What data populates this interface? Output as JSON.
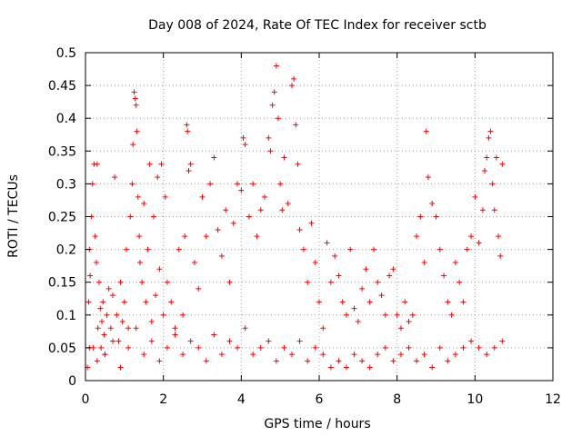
{
  "chart_data": {
    "type": "scatter",
    "title": "Day 008 of 2024, Rate Of TEC Index for receiver sctb",
    "xlabel": "GPS time / hours",
    "ylabel": "ROTI / TECUs",
    "xlim": [
      0,
      12
    ],
    "ylim": [
      0,
      0.5
    ],
    "xticks": [
      0,
      2,
      4,
      6,
      8,
      10,
      12
    ],
    "xtick_labels": [
      "0",
      "2",
      "4",
      "6",
      "8",
      "10",
      "12"
    ],
    "yticks": [
      0,
      0.05,
      0.1,
      0.15,
      0.2,
      0.25,
      0.3,
      0.35,
      0.4,
      0.45,
      0.5
    ],
    "ytick_labels": [
      "0",
      "0.05",
      "0.1",
      "0.15",
      "0.2",
      "0.25",
      "0.3",
      "0.35",
      "0.4",
      "0.45",
      "0.5"
    ],
    "grid": true,
    "marker": "+",
    "color": "#ff0000",
    "series": [
      {
        "name": "ROTI",
        "x": [
          0.05,
          0.08,
          0.1,
          0.12,
          0.15,
          0.18,
          0.2,
          0.22,
          0.25,
          0.28,
          0.3,
          0.32,
          0.35,
          0.38,
          0.4,
          0.42,
          0.45,
          0.48,
          0.5,
          0.55,
          0.6,
          0.65,
          0.7,
          0.75,
          0.8,
          0.85,
          0.9,
          0.95,
          1.0,
          1.05,
          1.1,
          1.15,
          1.2,
          1.22,
          1.25,
          1.28,
          1.3,
          1.32,
          1.35,
          1.38,
          1.4,
          1.45,
          1.5,
          1.55,
          1.6,
          1.65,
          1.7,
          1.75,
          1.8,
          1.85,
          1.9,
          1.95,
          2.0,
          2.05,
          2.1,
          2.2,
          2.3,
          2.4,
          2.5,
          2.55,
          2.6,
          2.62,
          2.65,
          2.7,
          2.8,
          2.9,
          3.0,
          3.1,
          3.2,
          3.3,
          3.4,
          3.5,
          3.6,
          3.7,
          3.8,
          3.9,
          4.0,
          4.05,
          4.1,
          4.2,
          4.3,
          4.4,
          4.5,
          4.6,
          4.7,
          4.75,
          4.8,
          4.85,
          4.9,
          4.95,
          5.0,
          5.05,
          5.1,
          5.2,
          5.3,
          5.35,
          5.4,
          5.45,
          5.5,
          5.6,
          5.7,
          5.8,
          5.9,
          6.0,
          6.1,
          6.2,
          6.3,
          6.4,
          6.5,
          6.6,
          6.7,
          6.8,
          6.9,
          7.0,
          7.1,
          7.2,
          7.3,
          7.4,
          7.5,
          7.6,
          7.7,
          7.8,
          7.9,
          8.0,
          8.1,
          8.2,
          8.3,
          8.4,
          8.5,
          8.6,
          8.7,
          8.75,
          8.8,
          8.9,
          9.0,
          9.1,
          9.2,
          9.3,
          9.4,
          9.5,
          9.6,
          9.7,
          9.8,
          9.9,
          10.0,
          10.1,
          10.2,
          10.25,
          10.3,
          10.35,
          10.4,
          10.45,
          10.5,
          10.55,
          10.6,
          10.65,
          10.7,
          0.1,
          0.3,
          0.5,
          0.7,
          0.9,
          1.1,
          1.3,
          1.5,
          1.7,
          1.9,
          2.1,
          2.3,
          2.5,
          2.7,
          2.9,
          3.1,
          3.3,
          3.5,
          3.7,
          3.9,
          4.1,
          4.3,
          4.5,
          4.7,
          4.9,
          5.1,
          5.3,
          5.5,
          5.7,
          5.9,
          6.1,
          6.3,
          6.5,
          6.7,
          6.9,
          7.1,
          7.3,
          7.5,
          7.7,
          7.9,
          8.1,
          8.3,
          8.5,
          8.7,
          8.9,
          9.1,
          9.3,
          9.5,
          9.7,
          9.9,
          10.1,
          10.3,
          10.5,
          10.7
        ],
        "y": [
          0.02,
          0.12,
          0.2,
          0.16,
          0.25,
          0.3,
          0.05,
          0.33,
          0.22,
          0.18,
          0.33,
          0.08,
          0.15,
          0.11,
          0.05,
          0.09,
          0.12,
          0.07,
          0.04,
          0.1,
          0.14,
          0.08,
          0.13,
          0.31,
          0.1,
          0.06,
          0.15,
          0.09,
          0.12,
          0.2,
          0.08,
          0.25,
          0.3,
          0.36,
          0.44,
          0.43,
          0.42,
          0.38,
          0.28,
          0.22,
          0.18,
          0.15,
          0.27,
          0.12,
          0.2,
          0.33,
          0.09,
          0.25,
          0.13,
          0.31,
          0.17,
          0.33,
          0.1,
          0.28,
          0.15,
          0.12,
          0.08,
          0.2,
          0.1,
          0.22,
          0.39,
          0.38,
          0.32,
          0.33,
          0.18,
          0.14,
          0.28,
          0.22,
          0.3,
          0.34,
          0.23,
          0.19,
          0.26,
          0.15,
          0.24,
          0.3,
          0.29,
          0.37,
          0.36,
          0.25,
          0.3,
          0.22,
          0.26,
          0.28,
          0.37,
          0.35,
          0.42,
          0.44,
          0.48,
          0.4,
          0.3,
          0.26,
          0.34,
          0.27,
          0.45,
          0.46,
          0.39,
          0.33,
          0.23,
          0.2,
          0.15,
          0.24,
          0.18,
          0.12,
          0.08,
          0.21,
          0.15,
          0.19,
          0.16,
          0.12,
          0.1,
          0.2,
          0.11,
          0.09,
          0.14,
          0.17,
          0.12,
          0.2,
          0.15,
          0.13,
          0.1,
          0.16,
          0.17,
          0.1,
          0.08,
          0.12,
          0.09,
          0.1,
          0.22,
          0.25,
          0.18,
          0.38,
          0.31,
          0.27,
          0.25,
          0.2,
          0.16,
          0.12,
          0.1,
          0.18,
          0.15,
          0.12,
          0.2,
          0.22,
          0.28,
          0.21,
          0.26,
          0.32,
          0.34,
          0.37,
          0.38,
          0.3,
          0.26,
          0.34,
          0.22,
          0.19,
          0.33,
          0.05,
          0.03,
          0.04,
          0.06,
          0.02,
          0.05,
          0.08,
          0.04,
          0.06,
          0.03,
          0.05,
          0.07,
          0.04,
          0.06,
          0.05,
          0.03,
          0.07,
          0.04,
          0.06,
          0.05,
          0.08,
          0.04,
          0.05,
          0.06,
          0.03,
          0.05,
          0.04,
          0.06,
          0.03,
          0.05,
          0.04,
          0.02,
          0.03,
          0.02,
          0.04,
          0.03,
          0.02,
          0.04,
          0.05,
          0.03,
          0.04,
          0.05,
          0.03,
          0.04,
          0.02,
          0.05,
          0.03,
          0.04,
          0.05,
          0.06,
          0.05,
          0.04,
          0.05,
          0.06
        ]
      }
    ]
  }
}
